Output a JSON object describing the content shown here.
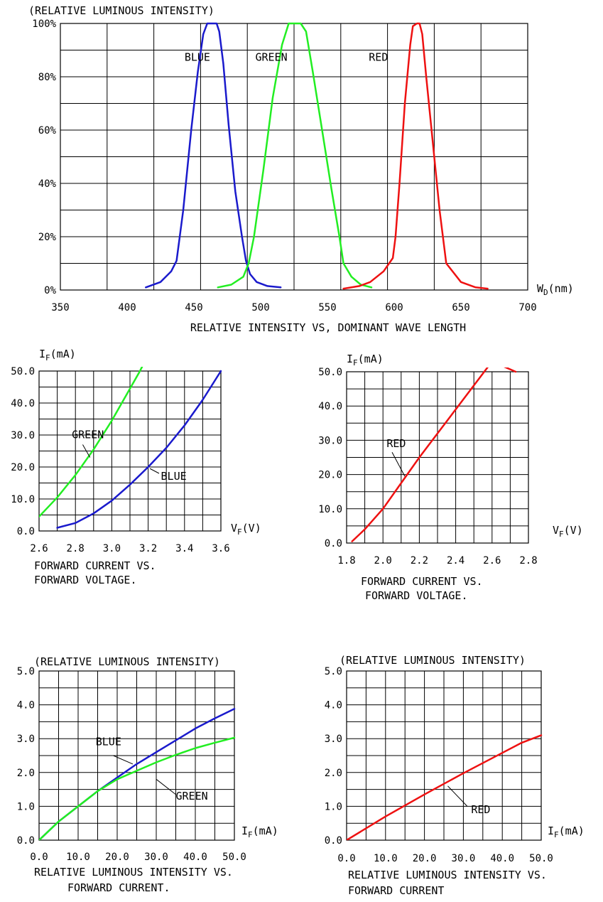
{
  "chart_data": [
    {
      "id": "spectrum",
      "type": "line",
      "title": "(RELATIVE LUMINOUS INTENSITY)",
      "caption": [
        "RELATIVE INTENSITY   VS, DOMINANT WAVE LENGTH"
      ],
      "xlabel": "W_D(nm)",
      "ylabel": "",
      "xlim": [
        350,
        700
      ],
      "ylim": [
        0,
        100
      ],
      "x_ticks": [
        "350",
        "400",
        "450",
        "500",
        "550",
        "600",
        "650",
        "700"
      ],
      "y_ticks": [
        "0%",
        "20%",
        "40%",
        "60%",
        "80%",
        "100%"
      ],
      "grid": "on",
      "series": [
        {
          "name": "BLUE",
          "color": "#1a1acc",
          "x": [
            414,
            425,
            433,
            437,
            442,
            448,
            453,
            457,
            460,
            463,
            467,
            469,
            472,
            476,
            481,
            486,
            489,
            492,
            497,
            505,
            515
          ],
          "y": [
            1,
            3,
            7,
            11,
            30,
            60,
            82,
            96,
            100,
            100,
            100,
            97,
            85,
            62,
            37,
            20,
            11,
            6,
            3,
            1.5,
            1
          ]
        },
        {
          "name": "GREEN",
          "color": "#22ee22",
          "x": [
            468,
            478,
            487,
            491,
            495,
            502,
            509,
            516,
            521,
            524,
            530,
            534,
            539,
            546,
            553,
            559,
            562,
            568,
            575,
            583
          ],
          "y": [
            1,
            2,
            5,
            10,
            20,
            45,
            72,
            92,
            100,
            100,
            100,
            97,
            82,
            60,
            38,
            20,
            10,
            5,
            2,
            1
          ]
        },
        {
          "name": "RED",
          "color": "#ee1111",
          "x": [
            562,
            574,
            582,
            592,
            599,
            601,
            604,
            608,
            612,
            614,
            617,
            619,
            621,
            624,
            629,
            634,
            639,
            650,
            661,
            670
          ],
          "y": [
            0.5,
            1.5,
            3,
            7,
            12,
            20,
            40,
            70,
            92,
            99,
            100,
            100,
            96,
            80,
            55,
            30,
            10,
            3,
            1,
            0.5
          ]
        }
      ],
      "annotations": [
        {
          "text": "BLUE",
          "x": 443,
          "y": 86
        },
        {
          "text": "GREEN",
          "x": 496,
          "y": 86
        },
        {
          "text": "RED",
          "x": 581,
          "y": 86
        }
      ]
    },
    {
      "id": "iv-blue-green",
      "type": "line",
      "title": "I_F(mA)",
      "caption": [
        "FORWARD CURRENT VS.",
        "FORWARD VOLTAGE."
      ],
      "xlabel": "V_F(V)",
      "ylabel": "I_F(mA)",
      "xlim": [
        2.6,
        3.6
      ],
      "ylim": [
        0,
        50
      ],
      "x_ticks": [
        "2.6",
        "2.8",
        "3.0",
        "3.2",
        "3.4",
        "3.6"
      ],
      "y_ticks": [
        "0.0",
        "10.0",
        "20.0",
        "30.0",
        "40.0",
        "50.0"
      ],
      "grid": "on",
      "series": [
        {
          "name": "GREEN",
          "color": "#22ee22",
          "x": [
            2.6,
            2.65,
            2.7,
            2.75,
            2.8,
            2.85,
            2.9,
            2.95,
            3.0,
            3.05,
            3.1,
            3.15,
            3.2
          ],
          "y": [
            4.5,
            7.5,
            10.5,
            14,
            17.5,
            21.5,
            25.5,
            30,
            34.5,
            39.5,
            44.5,
            49.5,
            55
          ]
        },
        {
          "name": "BLUE",
          "color": "#1a1acc",
          "x": [
            2.7,
            2.8,
            2.9,
            3.0,
            3.1,
            3.2,
            3.3,
            3.4,
            3.5,
            3.6
          ],
          "y": [
            1,
            2.5,
            5.5,
            9.5,
            14.5,
            20,
            26,
            33,
            41,
            50
          ]
        }
      ],
      "annotations": [
        {
          "text": "GREEN",
          "x": 2.78,
          "y": 29,
          "lx1": 2.84,
          "ly1": 27,
          "lx2": 2.88,
          "ly2": 23
        },
        {
          "text": "BLUE",
          "x": 3.27,
          "y": 16,
          "lx1": 3.26,
          "ly1": 18,
          "lx2": 3.21,
          "ly2": 19.5
        }
      ]
    },
    {
      "id": "iv-red",
      "type": "line",
      "title": "I_F(mA)",
      "caption": [
        "FORWARD CURRENT VS.",
        "FORWARD VOLTAGE."
      ],
      "xlabel": "V_F(V)",
      "ylabel": "I_F(mA)",
      "xlim": [
        1.8,
        2.8
      ],
      "ylim": [
        0,
        50
      ],
      "x_ticks": [
        "1.8",
        "2.0",
        "2.2",
        "2.4",
        "2.6",
        "2.8"
      ],
      "y_ticks": [
        "0.0",
        "10.0",
        "20.0",
        "30.0",
        "40.0",
        "50.0"
      ],
      "grid": "on",
      "series": [
        {
          "name": "RED",
          "color": "#ee1111",
          "x": [
            1.83,
            1.9,
            2.0,
            2.1,
            2.2,
            2.3,
            2.4,
            2.5,
            2.6,
            2.73
          ],
          "y": [
            0.5,
            4,
            10,
            17.5,
            25,
            32,
            39,
            46,
            53,
            50
          ]
        }
      ],
      "annotations": [
        {
          "text": "RED",
          "x": 2.02,
          "y": 28,
          "lx1": 2.05,
          "ly1": 26.5,
          "lx2": 2.12,
          "ly2": 19.5
        }
      ]
    },
    {
      "id": "lum-blue-green",
      "type": "line",
      "title": "(RELATIVE LUMINOUS INTENSITY)",
      "caption": [
        "RELATIVE LUMINOUS INTENSITY VS.",
        "FORWARD CURRENT."
      ],
      "xlabel": "I_F(mA)",
      "ylabel": "",
      "xlim": [
        0,
        50
      ],
      "ylim": [
        0,
        5
      ],
      "x_ticks": [
        "0.0",
        "10.0",
        "20.0",
        "30.0",
        "40.0",
        "50.0"
      ],
      "y_ticks": [
        "0.0",
        "1.0",
        "2.0",
        "3.0",
        "4.0",
        "5.0"
      ],
      "grid": "on",
      "series": [
        {
          "name": "BLUE",
          "color": "#1a1acc",
          "x": [
            0,
            5,
            10,
            15,
            20,
            25,
            30,
            35,
            40,
            45,
            50
          ],
          "y": [
            0,
            0.55,
            1.0,
            1.45,
            1.85,
            2.25,
            2.6,
            2.95,
            3.3,
            3.6,
            3.88
          ]
        },
        {
          "name": "GREEN",
          "color": "#22ee22",
          "x": [
            0,
            5,
            10,
            15,
            20,
            25,
            30,
            35,
            40,
            45,
            50
          ],
          "y": [
            0,
            0.55,
            1.0,
            1.45,
            1.8,
            2.05,
            2.3,
            2.52,
            2.72,
            2.88,
            3.03
          ]
        }
      ],
      "annotations": [
        {
          "text": "BLUE",
          "x": 14.5,
          "y": 2.8,
          "lx1": 19,
          "ly1": 2.5,
          "lx2": 24,
          "ly2": 2.25
        },
        {
          "text": "GREEN",
          "x": 35,
          "y": 1.2,
          "lx1": 35,
          "ly1": 1.35,
          "lx2": 30,
          "ly2": 1.8
        }
      ]
    },
    {
      "id": "lum-red",
      "type": "line",
      "title": "(RELATIVE LUMINOUS INTENSITY)",
      "caption": [
        "RELATIVE LUMINOUS INTENSITY VS.",
        "FORWARD CURRENT"
      ],
      "xlabel": "I_F(mA)",
      "ylabel": "",
      "xlim": [
        0,
        50
      ],
      "ylim": [
        0,
        5
      ],
      "x_ticks": [
        "0.0",
        "10.0",
        "20.0",
        "30.0",
        "40.0",
        "50.0"
      ],
      "y_ticks": [
        "0.0",
        "1.0",
        "2.0",
        "3.0",
        "4.0",
        "5.0"
      ],
      "grid": "on",
      "series": [
        {
          "name": "RED",
          "color": "#ee1111",
          "x": [
            0,
            10,
            20,
            30,
            40,
            45,
            50
          ],
          "y": [
            0,
            0.7,
            1.35,
            1.98,
            2.58,
            2.88,
            3.1
          ]
        }
      ],
      "annotations": [
        {
          "text": "RED",
          "x": 32,
          "y": 0.8,
          "lx1": 31,
          "ly1": 1.0,
          "lx2": 26,
          "ly2": 1.6
        }
      ]
    }
  ]
}
